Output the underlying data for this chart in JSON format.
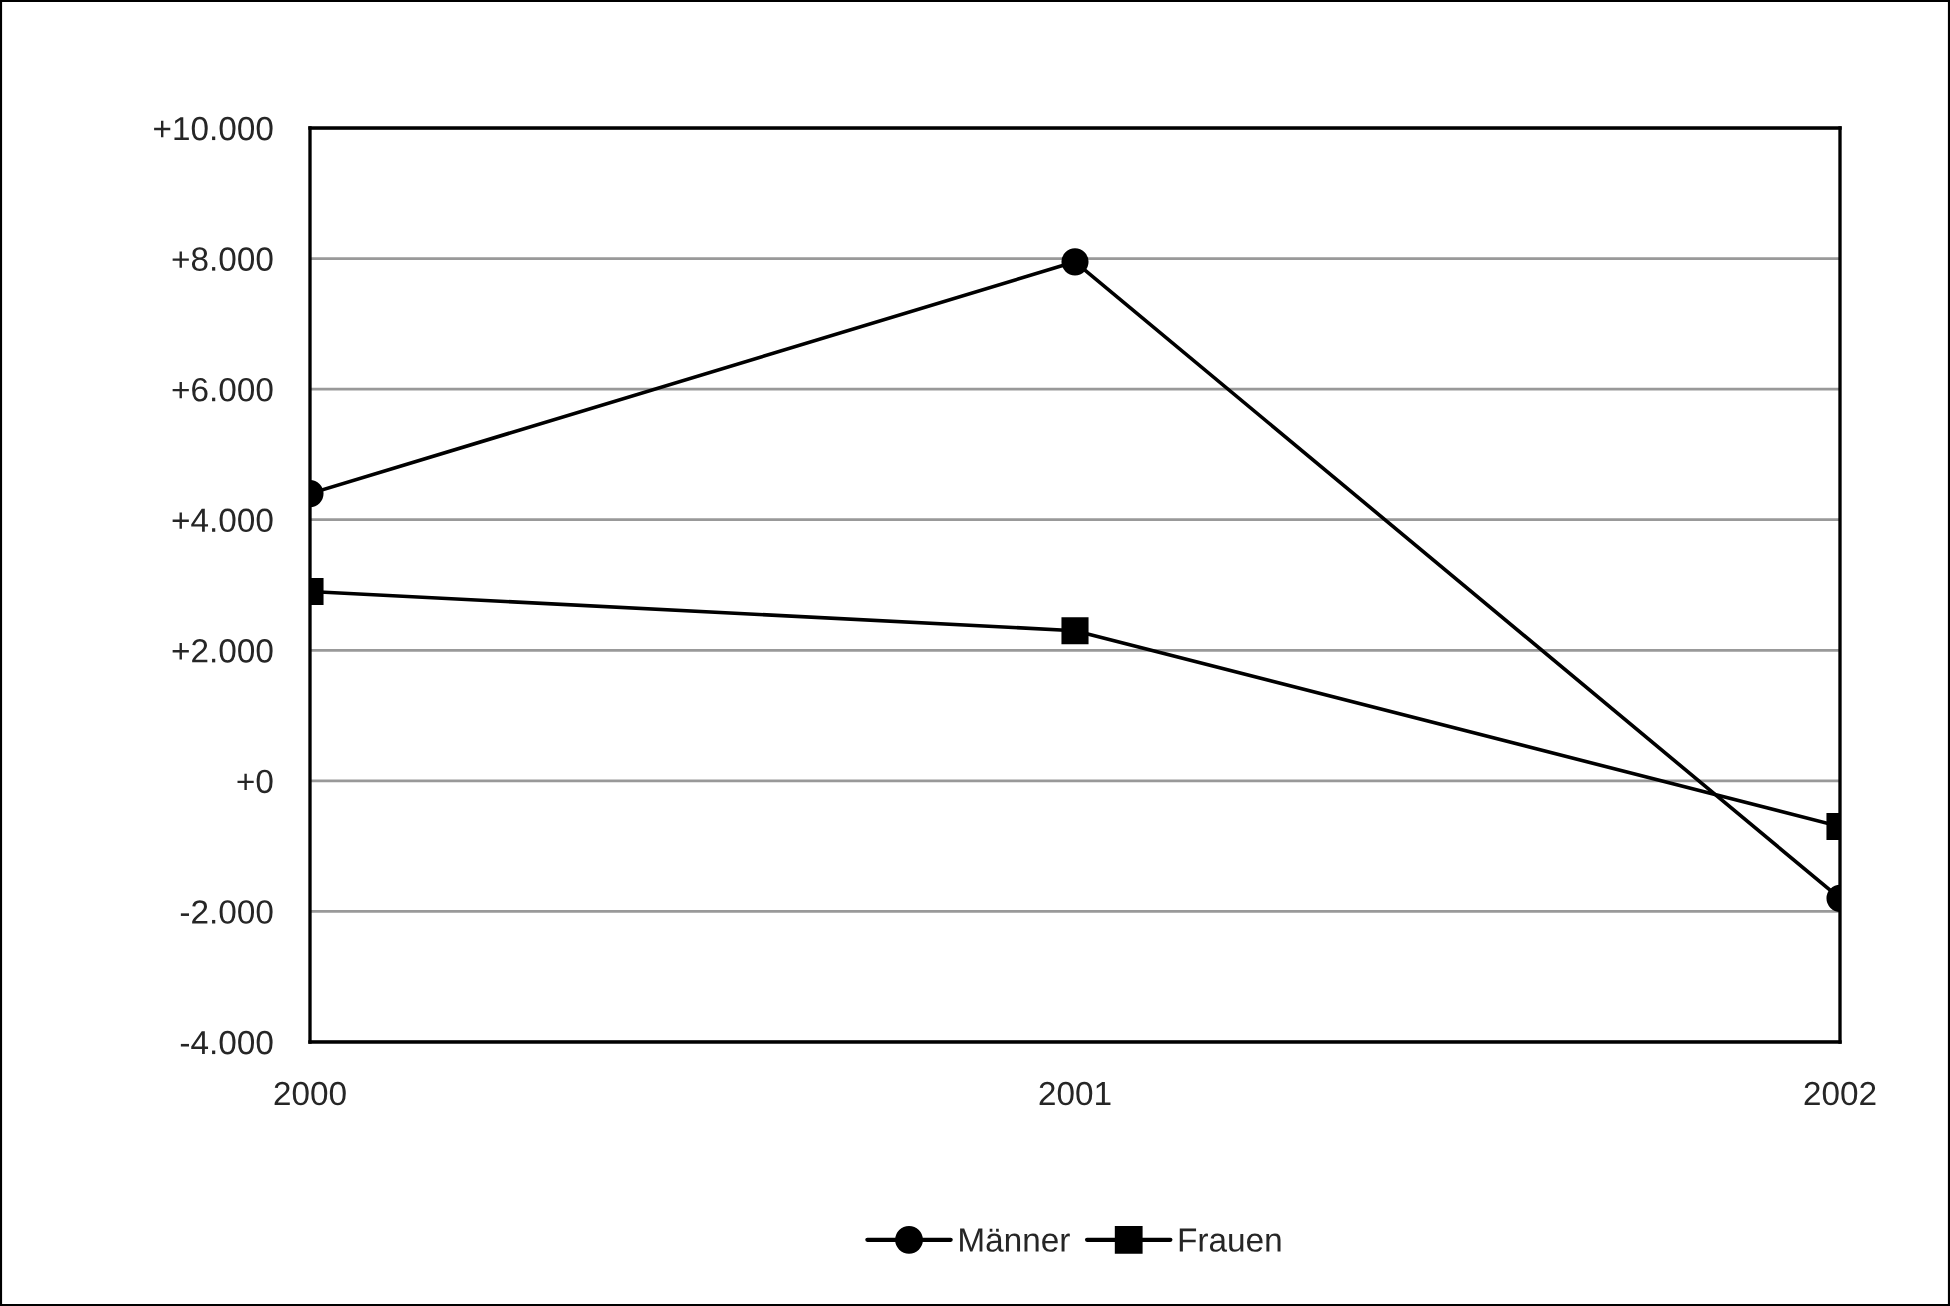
{
  "chart_data": {
    "type": "line",
    "categories": [
      "2000",
      "2001",
      "2002"
    ],
    "series": [
      {
        "name": "Männer",
        "color": "#000000",
        "marker": "circle",
        "values": [
          4400,
          7950,
          -1800
        ]
      },
      {
        "name": "Frauen",
        "color": "#000000",
        "marker": "square",
        "values": [
          2900,
          2300,
          -700
        ]
      }
    ],
    "ylim": [
      -4000,
      10000
    ],
    "yticks": [
      {
        "value": -4000,
        "label": "-4.000"
      },
      {
        "value": -2000,
        "label": "-2.000"
      },
      {
        "value": 0,
        "label": "+0"
      },
      {
        "value": 2000,
        "label": "+2.000"
      },
      {
        "value": 4000,
        "label": "+4.000"
      },
      {
        "value": 6000,
        "label": "+6.000"
      },
      {
        "value": 8000,
        "label": "+8.000"
      },
      {
        "value": 10000,
        "label": "+10.000"
      }
    ],
    "grid": "y",
    "legend": "bottom",
    "line_style": "solid"
  }
}
